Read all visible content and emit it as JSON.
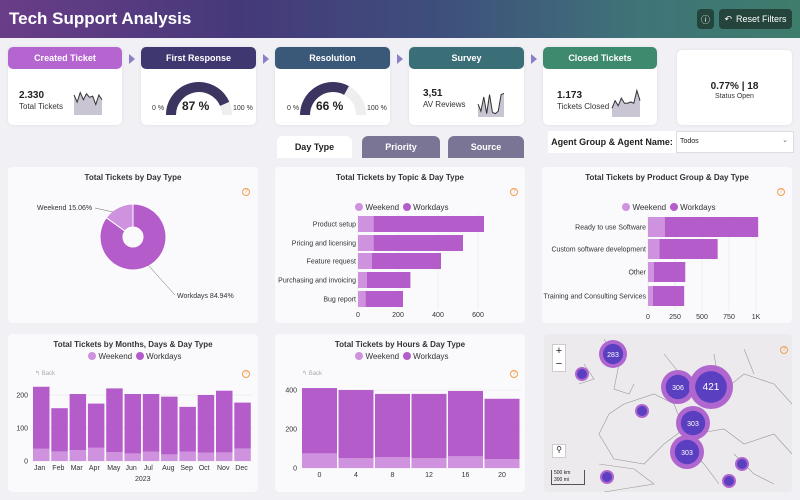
{
  "header": {
    "title": "Tech Support Analysis",
    "info_icon": "info-icon",
    "reset_label": "Reset Filters"
  },
  "kpis": [
    {
      "label": "Created Ticket",
      "color": "#b565d0",
      "value": "2.330",
      "sub": "Total Tickets",
      "trend": [
        0.8,
        0.5,
        0.9,
        0.6,
        0.85,
        0.7,
        0.75,
        0.4,
        0.8,
        0.6
      ]
    },
    {
      "label": "First Response",
      "color": "#3f3770",
      "gauge": 87,
      "value": "87 %",
      "min": "0 %",
      "max": "100 %"
    },
    {
      "label": "Resolution",
      "color": "#3a5878",
      "gauge": 66,
      "value": "66 %",
      "min": "0 %",
      "max": "100 %"
    },
    {
      "label": "Survey",
      "color": "#3b6f78",
      "value": "3,51",
      "sub": "AV Reviews",
      "trend": [
        0.5,
        0.2,
        0.8,
        0.1,
        0.9,
        0.15,
        0.1,
        0.2,
        0.9,
        0.95
      ]
    },
    {
      "label": "Closed Tickets",
      "color": "#3e8a6f",
      "value": "1.173",
      "sub": "Tickets Closed",
      "trend": [
        0.3,
        0.6,
        0.4,
        0.7,
        0.5,
        0.5,
        0.55,
        0.5,
        1.0,
        0.6
      ]
    }
  ],
  "status": {
    "value": "0.77% | 18",
    "label": "Status Open"
  },
  "tabs": [
    {
      "label": "Day Type",
      "active": true
    },
    {
      "label": "Priority"
    },
    {
      "label": "Source"
    }
  ],
  "filter": {
    "label": "Agent Group & Agent Name:",
    "value": "Todos"
  },
  "colors": {
    "weekend": "#cf92de",
    "workdays": "#b45dca"
  },
  "legend": {
    "weekend": "Weekend",
    "workdays": "Workdays"
  },
  "chart_data": [
    {
      "type": "pie",
      "title": "Total Tickets by Day Type",
      "slices": [
        {
          "name": "Weekend",
          "value": 15.06,
          "label": "Weekend 15.06%"
        },
        {
          "name": "Workdays",
          "value": 84.94,
          "label": "Workdays 84.94%"
        }
      ]
    },
    {
      "type": "bar",
      "orientation": "horizontal",
      "stacked": true,
      "title": "Total Tickets by Topic & Day Type",
      "categories": [
        "Product setup",
        "Pricing and licensing",
        "Feature request",
        "Purchasing and invoicing",
        "Bug report"
      ],
      "series": [
        {
          "name": "Weekend",
          "values": [
            78,
            78,
            70,
            45,
            38
          ]
        },
        {
          "name": "Workdays",
          "values": [
            552,
            447,
            345,
            217,
            187
          ]
        }
      ],
      "xticks": [
        0,
        200,
        400,
        600
      ],
      "xtick_labels": [
        "0",
        "200",
        "400",
        "600"
      ],
      "xlim": [
        0,
        700
      ]
    },
    {
      "type": "bar",
      "orientation": "horizontal",
      "stacked": true,
      "title": "Total Tickets by Product Group & Day Type",
      "categories": [
        "Ready to use Software",
        "Custom software development",
        "Other",
        "Training and Consulting Services"
      ],
      "series": [
        {
          "name": "Weekend",
          "values": [
            155,
            105,
            55,
            45
          ]
        },
        {
          "name": "Workdays",
          "values": [
            865,
            540,
            290,
            290
          ]
        }
      ],
      "xticks": [
        0,
        250,
        500,
        750,
        1000
      ],
      "xtick_labels": [
        "0",
        "250",
        "500",
        "750",
        "1K"
      ],
      "xlim": [
        0,
        1200
      ]
    },
    {
      "type": "bar",
      "stacked": true,
      "title": "Total Tickets by Months, Days & Day Type",
      "categories": [
        "Jan",
        "Feb",
        "Mar",
        "Apr",
        "May",
        "Jun",
        "Jul",
        "Aug",
        "Sep",
        "Oct",
        "Nov",
        "Dec"
      ],
      "xlabel": "2023",
      "series": [
        {
          "name": "Weekend",
          "values": [
            37,
            29,
            33,
            40,
            27,
            23,
            28,
            20,
            28,
            25,
            26,
            38
          ]
        },
        {
          "name": "Workdays",
          "values": [
            188,
            131,
            170,
            134,
            193,
            180,
            175,
            175,
            136,
            175,
            187,
            139
          ]
        }
      ],
      "yticks": [
        0,
        100,
        200
      ],
      "back_label": "Back"
    },
    {
      "type": "bar",
      "stacked": true,
      "title": "Total Tickets by Hours & Day Type",
      "categories": [
        "0",
        "4",
        "8",
        "12",
        "16",
        "20"
      ],
      "series": [
        {
          "name": "Weekend",
          "values": [
            75,
            50,
            55,
            50,
            60,
            45
          ]
        },
        {
          "name": "Workdays",
          "values": [
            335,
            350,
            325,
            330,
            335,
            310
          ]
        }
      ],
      "yticks": [
        0,
        200,
        400
      ],
      "back_label": "Back"
    }
  ],
  "map": {
    "bubbles": [
      {
        "label": "283",
        "size": "m"
      },
      {
        "label": "306",
        "size": "l"
      },
      {
        "label": "421",
        "size": "xl"
      },
      {
        "label": "303",
        "size": "l"
      },
      {
        "label": "303",
        "size": "l"
      }
    ],
    "zoom_in": "+",
    "zoom_out": "−",
    "scale_km": "500 km",
    "scale_mi": "300 mi"
  }
}
